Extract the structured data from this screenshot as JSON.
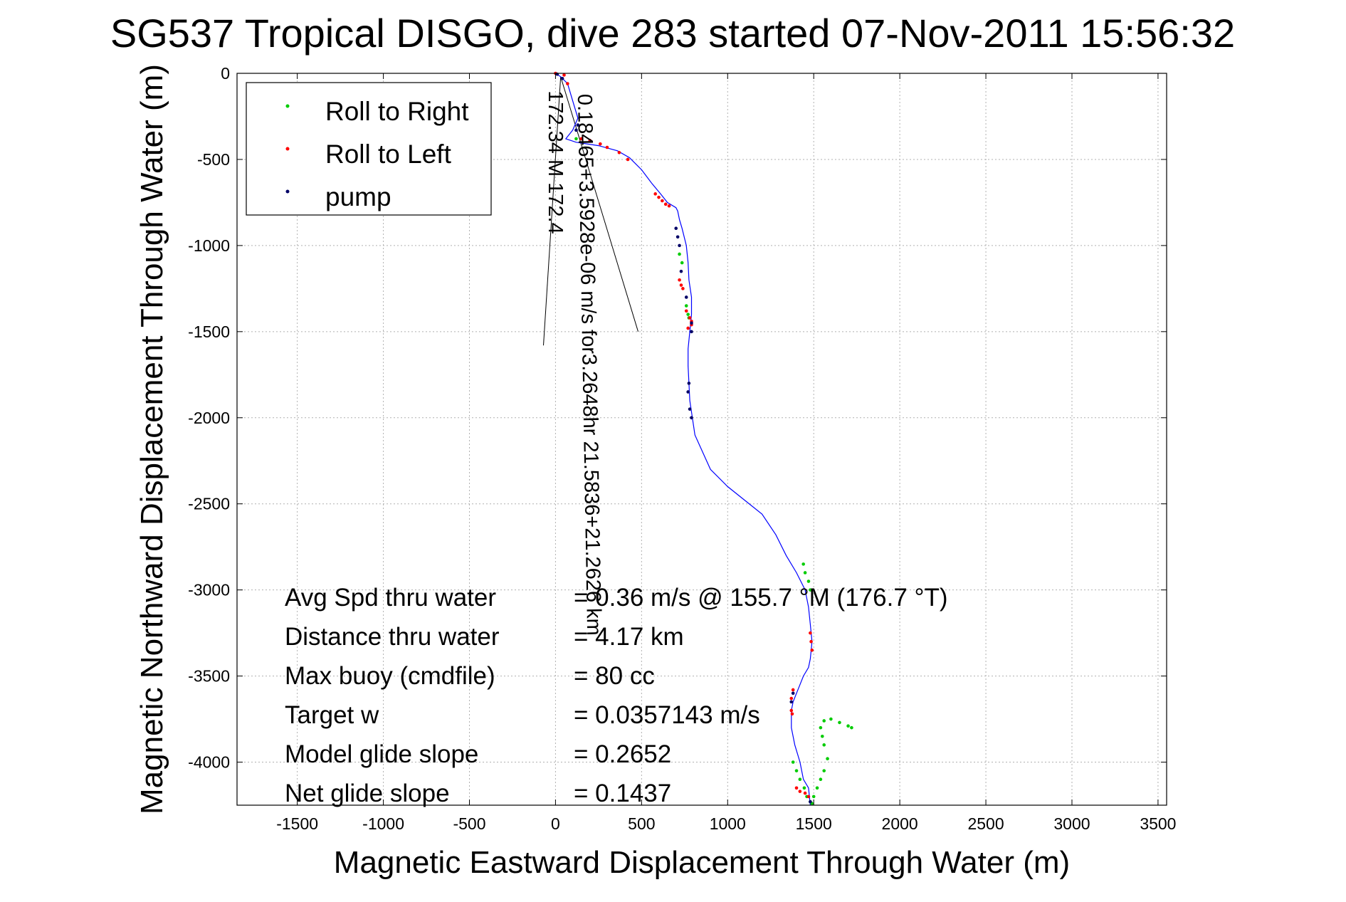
{
  "chart_data": {
    "type": "scatter",
    "title": "SG537 Tropical DISGO, dive 283 started 07-Nov-2011 15:56:32",
    "xlabel": "Magnetic Eastward Displacement Through Water (m)",
    "ylabel": "Magnetic Northward Displacement Through Water (m)",
    "xlim": [
      -1850,
      3550
    ],
    "ylim": [
      -4250,
      0
    ],
    "xticks": [
      -1500,
      -1000,
      -500,
      0,
      500,
      1000,
      1500,
      2000,
      2500,
      3000,
      3500
    ],
    "yticks": [
      0,
      -500,
      -1000,
      -1500,
      -2000,
      -2500,
      -3000,
      -3500,
      -4000
    ],
    "grid": true,
    "legend_position": "top-left",
    "track": {
      "name": "track",
      "color": "#0000ff",
      "x": [
        0,
        30,
        70,
        100,
        130,
        100,
        60,
        120,
        250,
        360,
        430,
        500,
        560,
        610,
        650,
        700,
        710,
        720,
        735,
        760,
        770,
        775,
        790,
        790,
        780,
        770,
        770,
        775,
        780,
        810,
        900,
        1000,
        1100,
        1200,
        1280,
        1340,
        1400,
        1450,
        1470,
        1480,
        1490,
        1480,
        1470,
        1440,
        1420,
        1400,
        1380,
        1370,
        1370,
        1390,
        1420,
        1440,
        1470,
        1480
      ],
      "y": [
        0,
        -20,
        -60,
        -160,
        -260,
        -330,
        -380,
        -400,
        -420,
        -450,
        -490,
        -560,
        -640,
        -700,
        -750,
        -780,
        -800,
        -850,
        -900,
        -1000,
        -1100,
        -1200,
        -1300,
        -1400,
        -1500,
        -1600,
        -1700,
        -1800,
        -1900,
        -2100,
        -2300,
        -2400,
        -2480,
        -2560,
        -2680,
        -2800,
        -2900,
        -3000,
        -3100,
        -3200,
        -3300,
        -3400,
        -3450,
        -3500,
        -3550,
        -3600,
        -3650,
        -3700,
        -3800,
        -3900,
        -4000,
        -4100,
        -4150,
        -4250
      ]
    },
    "series": [
      {
        "name": "Roll to Right",
        "color": "#00cc00",
        "marker": "point",
        "x": [
          120,
          720,
          735,
          760,
          770,
          775,
          1440,
          1450,
          1470,
          1480,
          1380,
          1400,
          1420,
          1445,
          1460,
          1480,
          1490,
          1500,
          1520,
          1540,
          1560,
          1580,
          1560,
          1550,
          1540,
          1560,
          1600,
          1650,
          1700,
          1720
        ],
        "y": [
          -380,
          -1050,
          -1100,
          -1350,
          -1400,
          -1420,
          -2850,
          -2900,
          -2950,
          -3000,
          -4000,
          -4050,
          -4100,
          -4150,
          -4200,
          -4230,
          -4240,
          -4200,
          -4150,
          -4100,
          -4050,
          -3980,
          -3900,
          -3850,
          -3800,
          -3760,
          -3750,
          -3770,
          -3790,
          -3800
        ]
      },
      {
        "name": "Roll to Left",
        "color": "#ff0000",
        "marker": "point",
        "x": [
          0,
          50,
          70,
          150,
          200,
          260,
          300,
          370,
          420,
          580,
          600,
          620,
          640,
          660,
          720,
          730,
          740,
          760,
          780,
          790,
          790,
          770,
          1480,
          1485,
          1490,
          1380,
          1370,
          1370,
          1375,
          1400,
          1420,
          1450,
          1470
        ],
        "y": [
          0,
          -10,
          -60,
          -380,
          -390,
          -410,
          -430,
          -460,
          -500,
          -700,
          -720,
          -740,
          -760,
          -770,
          -1200,
          -1230,
          -1250,
          -1380,
          -1420,
          -1440,
          -1460,
          -1480,
          -3250,
          -3300,
          -3350,
          -3580,
          -3630,
          -3700,
          -3720,
          -4150,
          -4170,
          -4180,
          -4200
        ]
      },
      {
        "name": "pump",
        "color": "#000066",
        "marker": "point",
        "x": [
          10,
          40,
          130,
          120,
          700,
          710,
          720,
          730,
          760,
          790,
          790,
          775,
          770,
          780,
          790,
          1380,
          1370,
          1480
        ],
        "y": [
          -5,
          -30,
          -300,
          -330,
          -900,
          -950,
          -1000,
          -1150,
          -1300,
          -1450,
          -1500,
          -1800,
          -1850,
          -1950,
          -2000,
          -3600,
          -3650,
          -4230
        ]
      }
    ],
    "annotations": {
      "rotated_labels": [
        {
          "text": "0.18465+3.5928e-06 m/s for3.2648hr 21.5836+21.2626 km",
          "anchor_x": 130,
          "anchor_y": -120,
          "rotation_deg": 89
        },
        {
          "text": "172.34 M 172.4",
          "anchor_x": -40,
          "anchor_y": -100,
          "rotation_deg": 90
        }
      ],
      "guide_lines": [
        {
          "x": [
            30,
            -70
          ],
          "y": [
            -20,
            -1580
          ]
        },
        {
          "x": [
            30,
            480
          ],
          "y": [
            -20,
            -1500
          ]
        }
      ]
    },
    "stats": [
      {
        "label": "Avg Spd thru water",
        "value": "=  0.36 m/s @ 155.7 °M (176.7 °T)"
      },
      {
        "label": "Distance thru water",
        "value": "=  4.17 km"
      },
      {
        "label": "Max buoy (cmdfile)",
        "value": "= 80 cc"
      },
      {
        "label": "Target w",
        "value": "= 0.0357143 m/s"
      },
      {
        "label": "Model glide slope",
        "value": "= 0.2652"
      },
      {
        "label": "Net glide slope",
        "value": "= 0.1437"
      }
    ]
  }
}
